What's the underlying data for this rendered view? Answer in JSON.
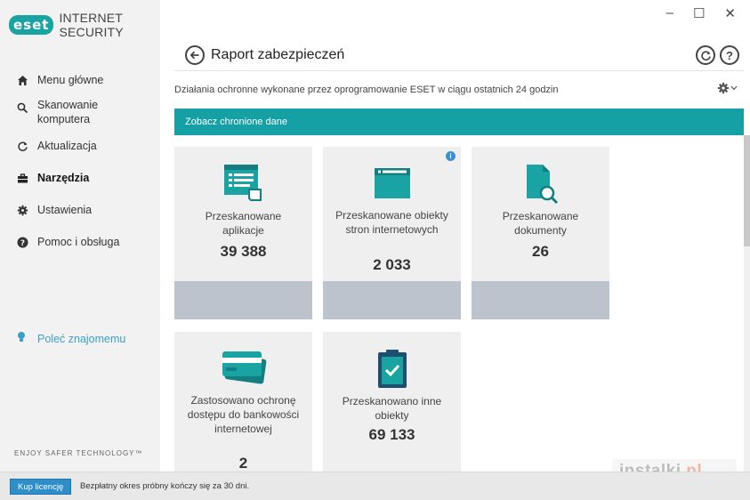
{
  "app": {
    "brand_badge": "eset",
    "product": "INTERNET SECURITY",
    "tagline": "ENJOY SAFER TECHNOLOGY™"
  },
  "window_controls": {
    "minimize": "–",
    "maximize": "☐",
    "close": "✕"
  },
  "sidebar": {
    "items": [
      {
        "label": "Menu główne",
        "icon": "home-icon"
      },
      {
        "label": "Skanowanie komputera",
        "icon": "search-icon"
      },
      {
        "label": "Aktualizacja",
        "icon": "refresh-icon"
      },
      {
        "label": "Narzędzia",
        "icon": "toolbox-icon",
        "active": true
      },
      {
        "label": "Ustawienia",
        "icon": "gear-icon"
      },
      {
        "label": "Pomoc i obsługa",
        "icon": "help-icon"
      }
    ],
    "recommend": "Poleć znajomemu"
  },
  "header": {
    "title": "Raport zabezpieczeń",
    "subtitle": "Działania ochronne wykonane przez oprogramowanie ESET w ciągu ostatnich 24 godzin",
    "help_glyph": "?"
  },
  "banner": {
    "label": "Zobacz chronione dane"
  },
  "tiles": [
    {
      "label": "Przeskanowane aplikacje",
      "value": "39 388",
      "icon": "apps-report-icon"
    },
    {
      "label": "Przeskanowane obiekty stron internetowych",
      "value": "2 033",
      "icon": "browser-window-icon",
      "info": "i"
    },
    {
      "label": "Przeskanowane dokumenty",
      "value": "26",
      "icon": "document-search-icon"
    },
    {
      "label": "Zastosowano ochronę dostępu do bankowości internetowej",
      "value": "2",
      "icon": "credit-card-icon"
    },
    {
      "label": "Przeskanowano inne obiekty",
      "value": "69 133",
      "icon": "clipboard-check-icon"
    }
  ],
  "footer": {
    "buy_label": "Kup licencję",
    "trial_text": "Bezpłatny okres próbny kończy się za 30 dni."
  },
  "watermark": {
    "text": "instalki",
    "suffix": ".pl"
  },
  "colors": {
    "accent": "#15a0a5",
    "tile_bg": "#efefef",
    "tile_footer": "#bcc3cc",
    "button": "#2d8ec9"
  }
}
